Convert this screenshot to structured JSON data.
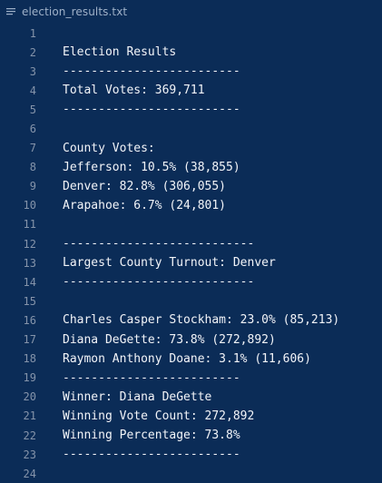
{
  "tab": {
    "icon": "text-file-icon",
    "title": "election_results.txt"
  },
  "editor": {
    "lines": [
      {
        "num": "1",
        "text": ""
      },
      {
        "num": "2",
        "text": "Election Results"
      },
      {
        "num": "3",
        "text": "-------------------------"
      },
      {
        "num": "4",
        "text": "Total Votes: 369,711"
      },
      {
        "num": "5",
        "text": "-------------------------"
      },
      {
        "num": "6",
        "text": ""
      },
      {
        "num": "7",
        "text": "County Votes:"
      },
      {
        "num": "8",
        "text": "Jefferson: 10.5% (38,855)"
      },
      {
        "num": "9",
        "text": "Denver: 82.8% (306,055)"
      },
      {
        "num": "10",
        "text": "Arapahoe: 6.7% (24,801)"
      },
      {
        "num": "11",
        "text": ""
      },
      {
        "num": "12",
        "text": "---------------------------"
      },
      {
        "num": "13",
        "text": "Largest County Turnout: Denver"
      },
      {
        "num": "14",
        "text": "---------------------------"
      },
      {
        "num": "15",
        "text": ""
      },
      {
        "num": "16",
        "text": "Charles Casper Stockham: 23.0% (85,213)"
      },
      {
        "num": "17",
        "text": "Diana DeGette: 73.8% (272,892)"
      },
      {
        "num": "18",
        "text": "Raymon Anthony Doane: 3.1% (11,606)"
      },
      {
        "num": "19",
        "text": "-------------------------"
      },
      {
        "num": "20",
        "text": "Winner: Diana DeGette"
      },
      {
        "num": "21",
        "text": "Winning Vote Count: 272,892"
      },
      {
        "num": "22",
        "text": "Winning Percentage: 73.8%"
      },
      {
        "num": "23",
        "text": "-------------------------"
      },
      {
        "num": "24",
        "text": ""
      }
    ]
  },
  "colors": {
    "background": "#0b2c57",
    "text": "#f2f4f8",
    "line_number": "#8594aa"
  }
}
